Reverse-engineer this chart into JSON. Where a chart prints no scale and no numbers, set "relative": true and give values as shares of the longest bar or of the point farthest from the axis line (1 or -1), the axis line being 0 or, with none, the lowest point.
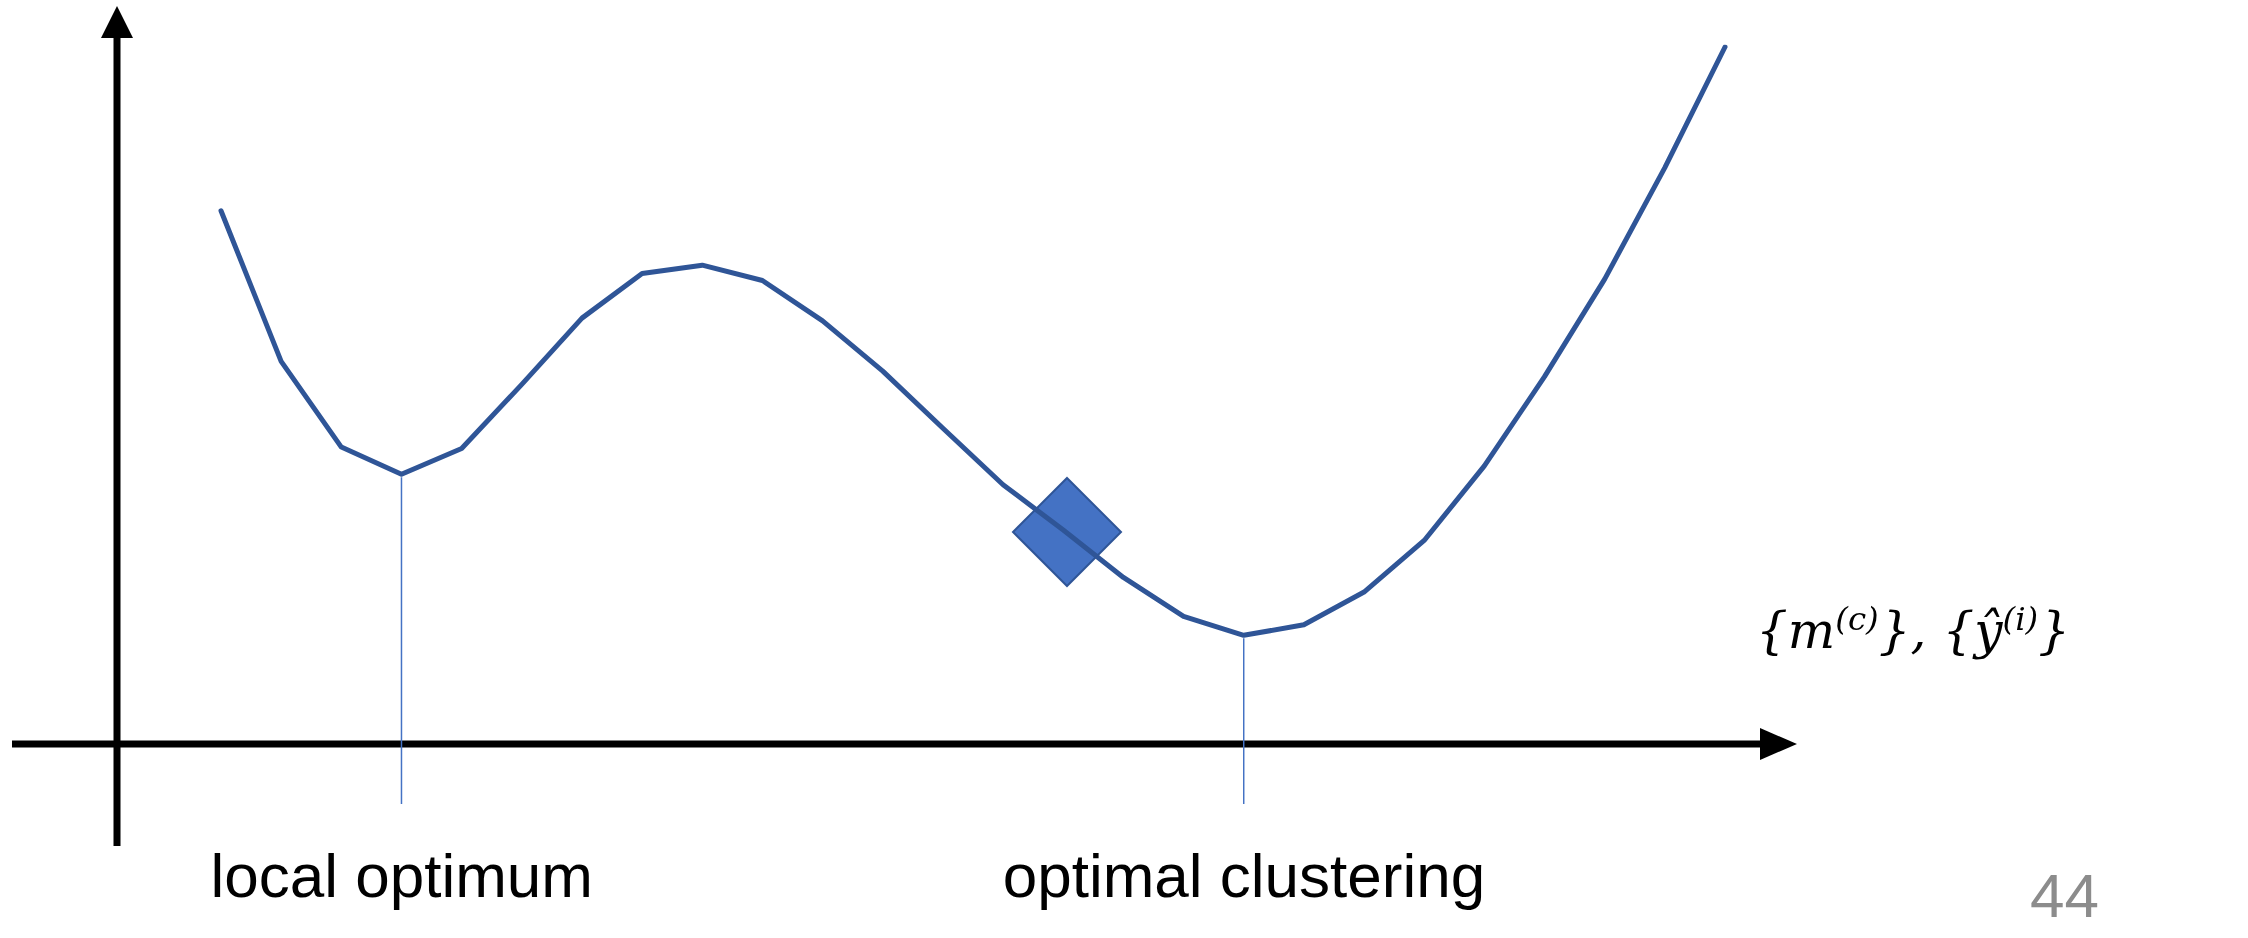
{
  "chart_data": {
    "type": "line",
    "relative": true,
    "xlabel": "{m$^{(c)}$}, {ŷ$^{(i)}$}",
    "categories": [
      null,
      null,
      null,
      null,
      null,
      null,
      null,
      null,
      null,
      null,
      null,
      null,
      null,
      null,
      null,
      null,
      null,
      null,
      null,
      null,
      null,
      null,
      null,
      null,
      null,
      null
    ],
    "series": [
      {
        "color": "#2f5597",
        "values": [
          0.765,
          0.549,
          0.426,
          0.387,
          0.424,
          0.516,
          0.611,
          0.675,
          0.687,
          0.665,
          0.607,
          0.535,
          0.453,
          0.372,
          0.307,
          0.239,
          0.183,
          0.156,
          0.171,
          0.218,
          0.292,
          0.399,
          0.527,
          0.667,
          0.827,
          1.0
        ]
      }
    ],
    "annotations": [
      "local optimum",
      "optimal clustering",
      "44"
    ],
    "marker": "none"
  }
}
